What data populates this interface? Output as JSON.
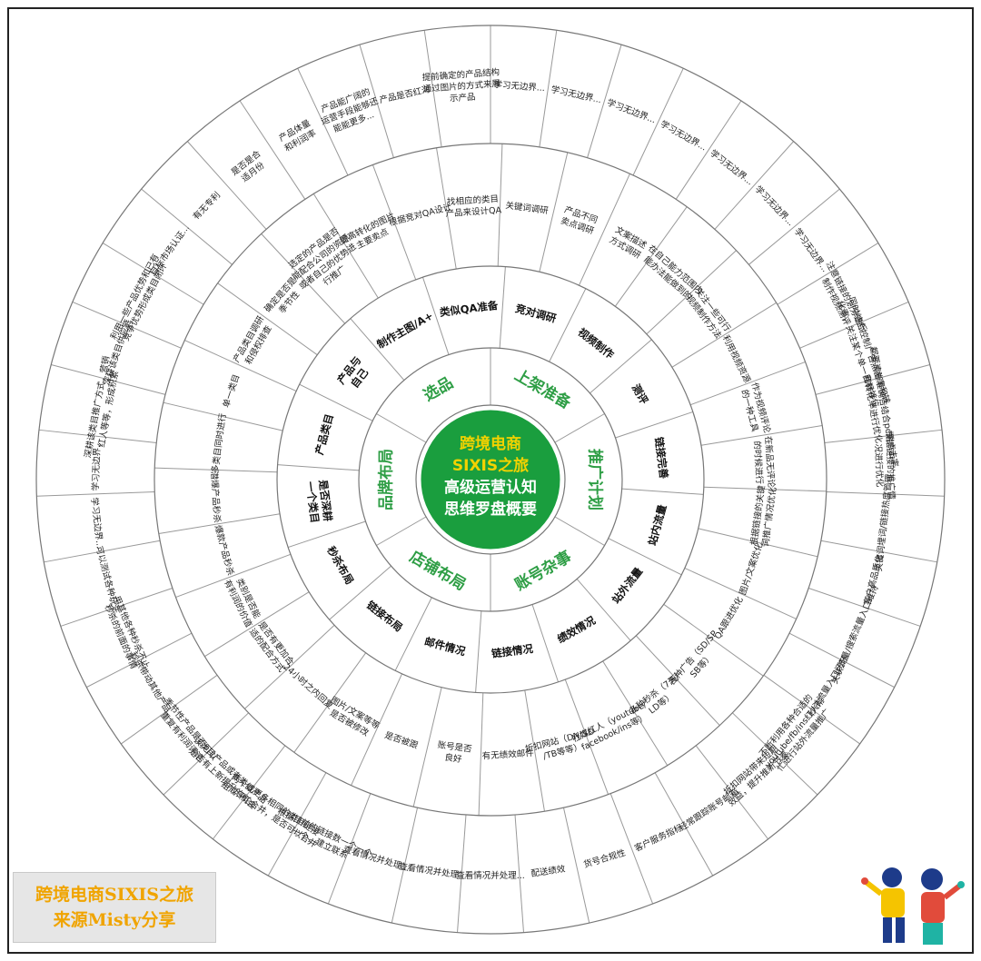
{
  "center": {
    "line1": "跨境电商",
    "line2": "SIXIS之旅",
    "line3": "高级运营认知",
    "line4": "思维罗盘概要"
  },
  "colors": {
    "accent_green": "#2e9e45",
    "center_fill": "#1a9e3e",
    "center_text_yellow": "#f3d200",
    "center_text_white": "#ffffff",
    "credit_text": "#f0a400"
  },
  "sectors": [
    {
      "label": "上架准备"
    },
    {
      "label": "推广计划"
    },
    {
      "label": "账号杂事"
    },
    {
      "label": "店铺布局"
    },
    {
      "label": "品牌布局"
    },
    {
      "label": "选品"
    }
  ],
  "categories": [
    "竞对调研",
    "视频制作",
    "测评",
    "链接完善",
    "站内流量",
    "站外流量",
    "绩效情况",
    "链接情况",
    "邮件情况",
    "链接布局",
    "秒杀布局",
    "是否深耕 一个类目",
    "产品类目",
    "产品与 自己",
    "制作主图/A+",
    "类似QA准备"
  ],
  "details": [
    "关键词调研",
    "产品不同 卖点调研",
    "文案描述 方式调研",
    "在自己能力范围内 能办法能做到的",
    "关注一些可行 视频制作方法",
    "利用视频资源",
    "作为视频评论 的一种工具",
    "在新品无评论 的时候进行",
    "根据链接的关键 词推广情况优化",
    "图片/文案优化",
    "QA跟进优化",
    "各种广告（SD/SP SB等）",
    "各种秒杀（7天/ LD等）",
    "社媒红人（youtube/ facebook/ins等）",
    "折扣网站（DN/SD /TB等等）",
    "有无绩效邮件",
    "账号是否 良好",
    "是否被跟",
    "图片/文案等等 是否被修改",
    "24小时之内回复",
    "是否有更加合 适的配合方式",
    "类别是否能 有利润的价值",
    "爆款产品秒杀",
    "潜爆产品秒杀",
    "多类目同时进行",
    "单一类目",
    "产品类目调研 和侵权排查",
    "确定是否是 季节性",
    "选定的产品是否 能配合公司的资源 或者自己的优势进 行推广",
    "提高转化的图片 主要卖点",
    "根据竞对QA设计",
    "找相应的类目 产品来设计QA"
  ],
  "outer": [
    "学习无边界...",
    "学习无边界...",
    "学习无边界...",
    "学习无边界...",
    "学习无边界...",
    "学习无边界...",
    "学习无边界...",
    "注意链接的划分进行 制作视频测评",
    "同时结合控制广告点击率和转 化率，关注某个单一目标排位",
    "都要清晰准确告结合pc端点击率 和转化率进行优化",
    "根据链接的推广情 况进行优化",
    "关键词埋词/链接热度管理",
    "客户高品质化",
    "关联流量/搜索流量入口维持",
    "秒杀流量入口闭环",
    "不断利用各种合适的 youtube/fb/ins红人帮 忙进行站外流量推广",
    "折扣网站带来短期 效益，提升推新节奏",
    "经常跟踪账号邮箱",
    "客户服务指标",
    "货号合规性",
    "配送绩效",
    "查看情况并处理...",
    "查看情况并处理...",
    "查看情况并处理...",
    "根据目前的链接数一个一个 一个，建立联系",
    "两个或更多相同的类目链接 组成评论合并，是否可以合并",
    "该类目产品或者类似产品 是否有上新提升的机会",
    "季节性产品是否可以 重复有利润评论",
    "秒杀带动其他产品...",
    "用其他各种秒杀不止 秒杀的前面的事情",
    "可以测试各种玩法",
    "学习无边界...",
    "学习无边界...",
    "深耕该类目推广方式，营销 红人等等，形成积累",
    "深耕该类目供应链",
    "利用一些产品优势和已有 竞争优势形成类目闭环",
    "目标市场认证...",
    "有无专利",
    "是否是合 适月份",
    "产品体量 和利润率",
    "产品能广阔的 运营手段能够还 能能更多...",
    "产品是否红海",
    "提前确定的产品结构 通过图片的方式来展 示产品"
  ],
  "credit": {
    "line1": "跨境电商SIXIS之旅",
    "line2": "来源Misty分享"
  }
}
